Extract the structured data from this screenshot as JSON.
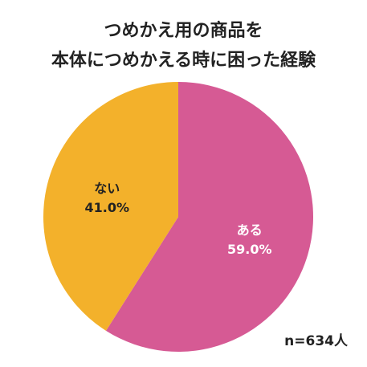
{
  "chart_data": {
    "type": "pie",
    "title_lines": [
      "つめかえ用の商品を",
      "本体につめかえる時に困った経験"
    ],
    "slices": [
      {
        "label": "ある",
        "value": 59.0,
        "value_text": "59.0%",
        "color": "#d65a94",
        "text_color": "#ffffff"
      },
      {
        "label": "ない",
        "value": 41.0,
        "value_text": "41.0%",
        "color": "#f3b12b",
        "text_color": "#222222"
      }
    ],
    "sample_size": "n=634人",
    "start_angle_deg": 0,
    "direction": "clockwise"
  }
}
